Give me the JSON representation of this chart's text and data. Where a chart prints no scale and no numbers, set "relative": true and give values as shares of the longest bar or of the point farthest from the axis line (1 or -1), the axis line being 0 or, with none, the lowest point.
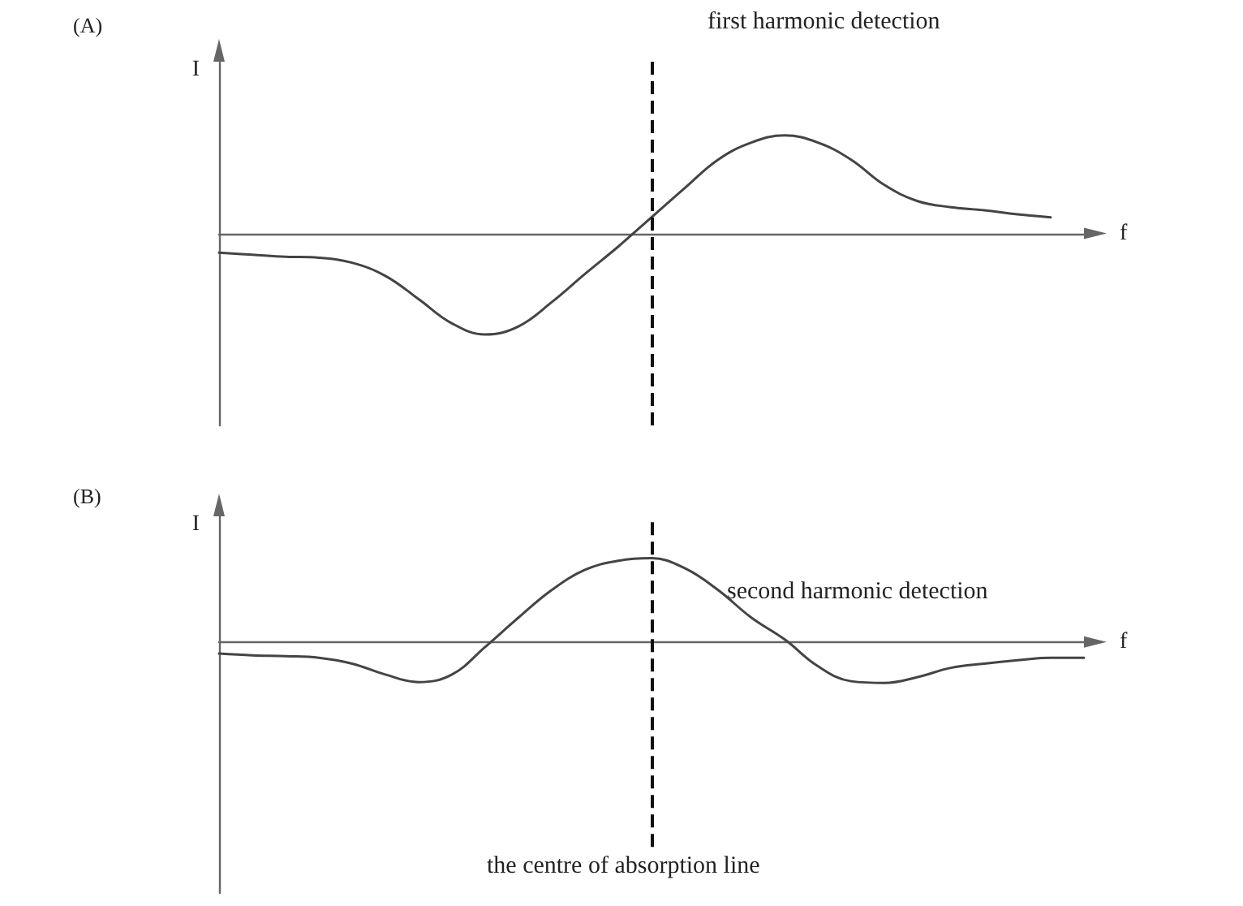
{
  "chart_data": [
    {
      "type": "line",
      "title": "(A)",
      "ylabel": "I",
      "xlabel": "f",
      "relative": true,
      "marker": "none",
      "line_style": "solid",
      "grid": false,
      "categories": [
        null,
        null,
        null,
        null,
        null,
        null,
        null,
        null,
        null,
        null,
        null,
        null,
        null,
        null,
        null,
        null,
        null,
        null,
        null,
        null,
        null,
        null,
        null,
        null,
        null,
        null,
        null
      ],
      "series": [
        {
          "color": "#444444",
          "values": [
            -0.19,
            -0.21,
            -0.23,
            -0.24,
            -0.29,
            -0.42,
            -0.65,
            -0.89,
            -1,
            -0.92,
            -0.68,
            -0.4,
            -0.13,
            0.16,
            0.45,
            0.73,
            0.9,
            0.97,
            0.9,
            0.73,
            0.48,
            0.32,
            0.26,
            0.23,
            0.19,
            0.16,
            null
          ]
        }
      ],
      "annotations": [
        "first harmonic detection"
      ]
    },
    {
      "type": "line",
      "title": "(B)",
      "ylabel": "I",
      "xlabel": "f",
      "relative": true,
      "marker": "none",
      "line_style": "solid",
      "grid": false,
      "categories": [
        null,
        null,
        null,
        null,
        null,
        null,
        null,
        null,
        null,
        null,
        null,
        null,
        null,
        null,
        null,
        null,
        null,
        null,
        null,
        null,
        null,
        null,
        null,
        null,
        null,
        null,
        null
      ],
      "series": [
        {
          "color": "#444444",
          "values": [
            -0.14,
            -0.16,
            -0.17,
            -0.19,
            -0.26,
            -0.39,
            -0.48,
            -0.39,
            -0.06,
            0.29,
            0.62,
            0.86,
            0.97,
            1,
            0.88,
            0.62,
            0.29,
            0.03,
            -0.29,
            -0.47,
            -0.49,
            -0.42,
            -0.31,
            -0.26,
            -0.22,
            -0.19,
            -0.19
          ]
        }
      ],
      "annotations": [
        "second harmonic detection",
        "the centre of absorption line"
      ]
    }
  ]
}
